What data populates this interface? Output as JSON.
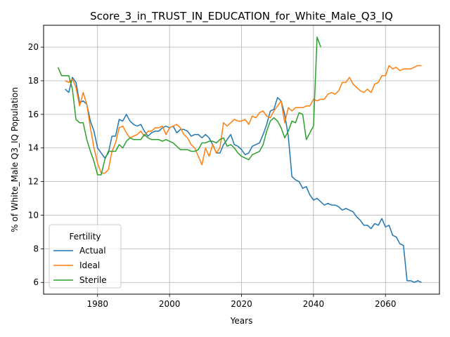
{
  "chart_data": {
    "type": "line",
    "title": "Score_3_in_TRUST_IN_EDUCATION_for_White_Male_Q3_IQ",
    "xlabel": "Years",
    "ylabel": "% of White_Male Q3_IQ Population",
    "xlim": [
      1965,
      2075
    ],
    "ylim": [
      5.3,
      21.3
    ],
    "xticks": [
      1980,
      2000,
      2020,
      2040,
      2060
    ],
    "yticks": [
      6,
      8,
      10,
      12,
      14,
      16,
      18,
      20
    ],
    "grid": true,
    "legend": {
      "title": "Fertility",
      "placement": "bottom-left"
    },
    "series": [
      {
        "name": "Actual",
        "color": "#1f77b4",
        "x": [
          1971,
          1972,
          1973,
          1974,
          1975,
          1976,
          1977,
          1978,
          1979,
          1980,
          1981,
          1982,
          1983,
          1984,
          1985,
          1986,
          1987,
          1988,
          1989,
          1990,
          1991,
          1992,
          1993,
          1994,
          1995,
          1996,
          1997,
          1998,
          1999,
          2000,
          2001,
          2002,
          2003,
          2004,
          2005,
          2006,
          2007,
          2008,
          2009,
          2010,
          2011,
          2012,
          2013,
          2014,
          2015,
          2016,
          2017,
          2018,
          2019,
          2020,
          2021,
          2022,
          2023,
          2024,
          2025,
          2026,
          2027,
          2028,
          2029,
          2030,
          2031,
          2032,
          2033,
          2034,
          2035,
          2036,
          2037,
          2038,
          2039,
          2040,
          2041,
          2042,
          2043,
          2044,
          2045,
          2046,
          2047,
          2048,
          2049,
          2050,
          2051,
          2052,
          2053,
          2054,
          2055,
          2056,
          2057,
          2058,
          2059,
          2060,
          2061,
          2062,
          2063,
          2064,
          2065,
          2066,
          2067,
          2068,
          2069,
          2070
        ],
        "y": [
          17.5,
          17.3,
          18.2,
          17.9,
          16.7,
          16.8,
          16.6,
          15.6,
          15.0,
          14.0,
          13.7,
          13.4,
          13.7,
          14.7,
          14.7,
          15.7,
          15.6,
          16.0,
          15.6,
          15.4,
          15.3,
          15.4,
          15.0,
          14.7,
          14.9,
          15.0,
          15.0,
          15.2,
          15.3,
          15.2,
          15.3,
          14.9,
          15.1,
          15.1,
          15.0,
          14.7,
          14.8,
          14.8,
          14.6,
          14.8,
          14.6,
          14.2,
          13.7,
          13.7,
          14.2,
          14.5,
          14.8,
          14.2,
          14.1,
          13.9,
          13.6,
          13.7,
          14.1,
          14.2,
          14.3,
          14.8,
          15.4,
          16.2,
          16.3,
          17.0,
          16.8,
          16.0,
          14.7,
          12.3,
          12.1,
          12.0,
          11.6,
          11.7,
          11.2,
          10.9,
          11.0,
          10.8,
          10.6,
          10.7,
          10.6,
          10.6,
          10.5,
          10.3,
          10.4,
          10.3,
          10.2,
          9.9,
          9.7,
          9.4,
          9.4,
          9.2,
          9.5,
          9.4,
          9.8,
          9.3,
          9.4,
          8.8,
          8.7,
          8.3,
          8.2,
          6.1,
          6.1,
          6.0,
          6.1,
          6.0
        ]
      },
      {
        "name": "Ideal",
        "color": "#ff7f0e",
        "x": [
          1971,
          1972,
          1973,
          1974,
          1975,
          1976,
          1977,
          1978,
          1979,
          1980,
          1981,
          1982,
          1983,
          1984,
          1985,
          1986,
          1987,
          1988,
          1989,
          1990,
          1991,
          1992,
          1993,
          1994,
          1995,
          1996,
          1997,
          1998,
          1999,
          2000,
          2001,
          2002,
          2003,
          2004,
          2005,
          2006,
          2007,
          2008,
          2009,
          2010,
          2011,
          2012,
          2013,
          2014,
          2015,
          2016,
          2017,
          2018,
          2019,
          2020,
          2021,
          2022,
          2023,
          2024,
          2025,
          2026,
          2027,
          2028,
          2029,
          2030,
          2031,
          2032,
          2033,
          2034,
          2035,
          2036,
          2037,
          2038,
          2039,
          2040,
          2041,
          2042,
          2043,
          2044,
          2045,
          2046,
          2047,
          2048,
          2049,
          2050,
          2051,
          2052,
          2053,
          2054,
          2055,
          2056,
          2057,
          2058,
          2059,
          2060,
          2061,
          2062,
          2063,
          2064,
          2065,
          2066,
          2067,
          2068,
          2069,
          2070
        ],
        "y": [
          18.0,
          17.9,
          18.1,
          17.6,
          16.5,
          17.3,
          16.6,
          15.2,
          14.0,
          13.1,
          12.5,
          12.5,
          12.7,
          13.8,
          14.3,
          15.2,
          15.3,
          14.9,
          14.6,
          14.7,
          14.8,
          15.0,
          14.7,
          15.0,
          15.0,
          15.2,
          15.2,
          15.3,
          14.8,
          15.2,
          15.3,
          15.4,
          15.2,
          14.8,
          14.6,
          14.2,
          14.0,
          13.5,
          13.0,
          14.0,
          13.5,
          14.2,
          13.7,
          14.0,
          15.5,
          15.3,
          15.5,
          15.7,
          15.6,
          15.6,
          15.7,
          15.4,
          15.9,
          15.8,
          16.1,
          16.2,
          15.9,
          15.8,
          16.2,
          16.5,
          16.8,
          15.5,
          16.4,
          16.2,
          16.4,
          16.4,
          16.4,
          16.5,
          16.5,
          16.9,
          16.8,
          16.9,
          16.9,
          17.2,
          17.3,
          17.2,
          17.4,
          17.9,
          17.9,
          18.2,
          17.8,
          17.6,
          17.4,
          17.3,
          17.5,
          17.3,
          17.8,
          17.9,
          18.3,
          18.3,
          18.9,
          18.7,
          18.8,
          18.6,
          18.7,
          18.7,
          18.7,
          18.8,
          18.9,
          18.9
        ]
      },
      {
        "name": "Sterile",
        "color": "#2ca02c",
        "x": [
          1969,
          1970,
          1971,
          1972,
          1973,
          1974,
          1975,
          1976,
          1977,
          1978,
          1979,
          1980,
          1981,
          1982,
          1983,
          1984,
          1985,
          1986,
          1987,
          1988,
          1989,
          1990,
          1991,
          1992,
          1993,
          1994,
          1995,
          1996,
          1997,
          1998,
          1999,
          2000,
          2001,
          2002,
          2003,
          2004,
          2005,
          2006,
          2007,
          2008,
          2009,
          2010,
          2011,
          2012,
          2013,
          2014,
          2015,
          2016,
          2017,
          2018,
          2019,
          2020,
          2021,
          2022,
          2023,
          2024,
          2025,
          2026,
          2027,
          2028,
          2029,
          2030,
          2031,
          2032,
          2033,
          2034,
          2035,
          2036,
          2037,
          2038,
          2039,
          2040,
          2041,
          2042
        ],
        "y": [
          18.8,
          18.3,
          18.3,
          18.3,
          17.5,
          15.7,
          15.5,
          15.5,
          14.5,
          13.8,
          13.2,
          12.4,
          12.4,
          13.3,
          13.8,
          13.8,
          13.8,
          14.2,
          14.0,
          14.4,
          14.6,
          14.5,
          14.5,
          14.5,
          14.8,
          14.6,
          14.5,
          14.5,
          14.5,
          14.4,
          14.5,
          14.4,
          14.3,
          14.1,
          13.9,
          13.9,
          13.9,
          13.8,
          13.8,
          13.9,
          14.3,
          14.3,
          14.4,
          14.4,
          14.3,
          14.5,
          14.6,
          14.1,
          14.2,
          14.0,
          13.7,
          13.5,
          13.4,
          13.3,
          13.6,
          13.7,
          13.8,
          14.2,
          15.0,
          15.6,
          15.8,
          15.6,
          15.2,
          14.6,
          15.0,
          15.6,
          15.5,
          16.1,
          16.0,
          14.5,
          14.9,
          15.3,
          20.6,
          20.0
        ]
      }
    ]
  }
}
